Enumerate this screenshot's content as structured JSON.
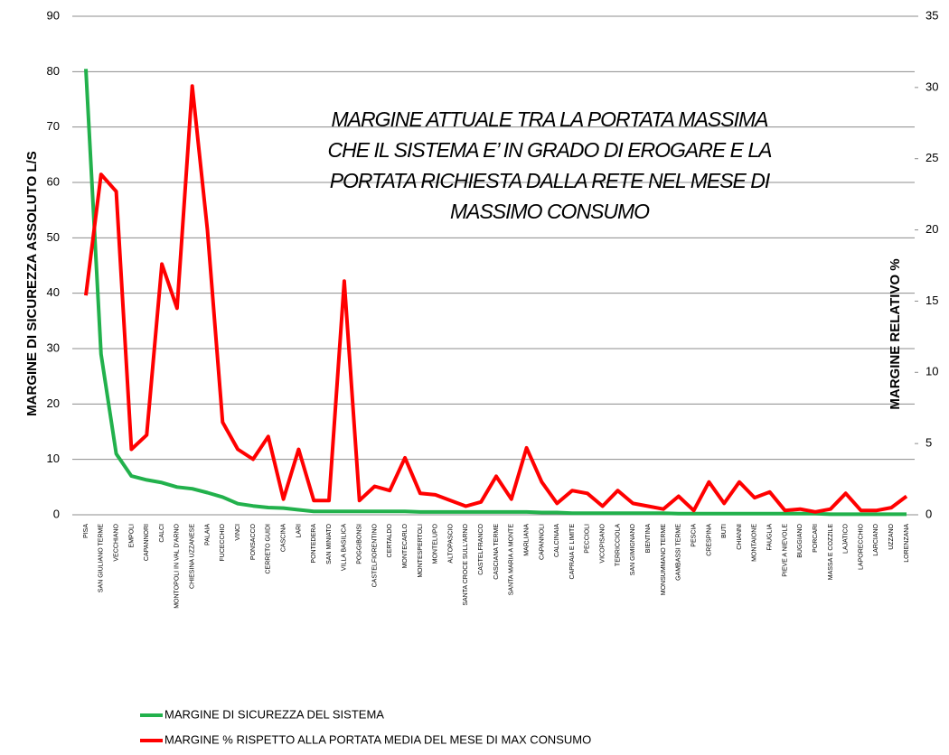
{
  "chart_data": {
    "type": "line",
    "annotation": [
      "MARGINE ATTUALE TRA  LA PORTATA MASSIMA",
      "CHE IL SISTEMA E’ IN GRADO DI EROGARE E LA",
      "PORTATA RICHIESTA DALLA RETE NEL MESE DI",
      "MASSIMO CONSUMO"
    ],
    "ylabel": "MARGINE DI SICUREZZA ASSOLUTO L/S",
    "y2label": "MARGINE RELATIVO %",
    "categories": [
      "PISA",
      "SAN GIULIANO TERME",
      "VECCHIANO",
      "EMPOLI",
      "CAPANNORI",
      "CALCI",
      "MONTOPOLI IN VAL D'ARNO",
      "CHIESINA UZZANESE",
      "PALAIA",
      "FUCECCHIO",
      "VINCI",
      "PONSACCO",
      "CERRETO GUIDI",
      "CASCINA",
      "LARI",
      "PONTEDERA",
      "SAN MINIATO",
      "VILLA BASILICA",
      "POGGIBONSI",
      "CASTELFIORENTINO",
      "CERTALDO",
      "MONTECARLO",
      "MONTESPERTOLI",
      "MONTELUPO",
      "ALTOPASCIO",
      "SANTA CROCE SULL'ARNO",
      "CASTELFRANCO",
      "CASCIANA TERME",
      "SANTA MARIA A MONTE",
      "MARLIANA",
      "CAPANNOLI",
      "CALCINAIA",
      "CAPRAIA E LIMITE",
      "PECCIOLI",
      "VICOPISANO",
      "TERRICCIOLA",
      "SAN GIMIGNANO",
      "BIENTINA",
      "MONSUMMANO TERME",
      "GAMBASSI TERME",
      "PESCIA",
      "CRESPINA",
      "BUTI",
      "CHIANNI",
      "MONTAIONE",
      "FAUGLIA",
      "PIEVE A NIEVOLE",
      "BUGGIANO",
      "PORCARI",
      "MASSA E COZZILE",
      "LAJATICO",
      "LAPORECCHIO",
      "LARCIANO",
      "UZZANO",
      "LORENZANA"
    ],
    "series": [
      {
        "name": "MARGINE DI SICUREZZA DEL SISTEMA",
        "color": "#22b14c",
        "axis": "y",
        "values": [
          80.5,
          29,
          11,
          7,
          6.3,
          5.8,
          5,
          4.7,
          4,
          3.2,
          2,
          1.6,
          1.3,
          1.2,
          0.9,
          0.6,
          0.6,
          0.6,
          0.6,
          0.6,
          0.6,
          0.6,
          0.5,
          0.5,
          0.5,
          0.5,
          0.5,
          0.5,
          0.5,
          0.5,
          0.4,
          0.4,
          0.3,
          0.3,
          0.3,
          0.3,
          0.3,
          0.3,
          0.3,
          0.2,
          0.2,
          0.2,
          0.2,
          0.2,
          0.2,
          0.2,
          0.2,
          0.2,
          0.2,
          0.1,
          0.1,
          0.1,
          0.1,
          0.1,
          0.1
        ]
      },
      {
        "name": "MARGINE % RISPETTO  ALLA PORTATA  MEDIA DEL MESE DI MAX CONSUMO",
        "color": "#ff0000",
        "axis": "y2",
        "values": [
          15.4,
          23.9,
          22.7,
          4.6,
          5.6,
          17.6,
          14.5,
          30.1,
          20,
          6.5,
          4.6,
          3.9,
          5.5,
          1.1,
          4.6,
          1.0,
          1.0,
          16.4,
          1.0,
          2.0,
          1.7,
          4.0,
          1.5,
          1.4,
          1.0,
          0.6,
          0.9,
          2.7,
          1.1,
          4.7,
          2.3,
          0.8,
          1.7,
          1.5,
          0.6,
          1.7,
          0.8,
          0.6,
          0.4,
          1.3,
          0.3,
          2.3,
          0.8,
          2.3,
          1.2,
          1.6,
          0.3,
          0.4,
          0.2,
          0.4,
          1.5,
          0.3,
          0.3,
          0.5,
          1.3
        ]
      }
    ],
    "ylim": [
      0,
      90
    ],
    "yticks": [
      0,
      10,
      20,
      30,
      40,
      50,
      60,
      70,
      80,
      90
    ],
    "y2lim": [
      0,
      35
    ],
    "y2ticks": [
      0,
      5,
      10,
      15,
      20,
      25,
      30,
      35
    ],
    "grid": true,
    "legend": "bottom"
  }
}
